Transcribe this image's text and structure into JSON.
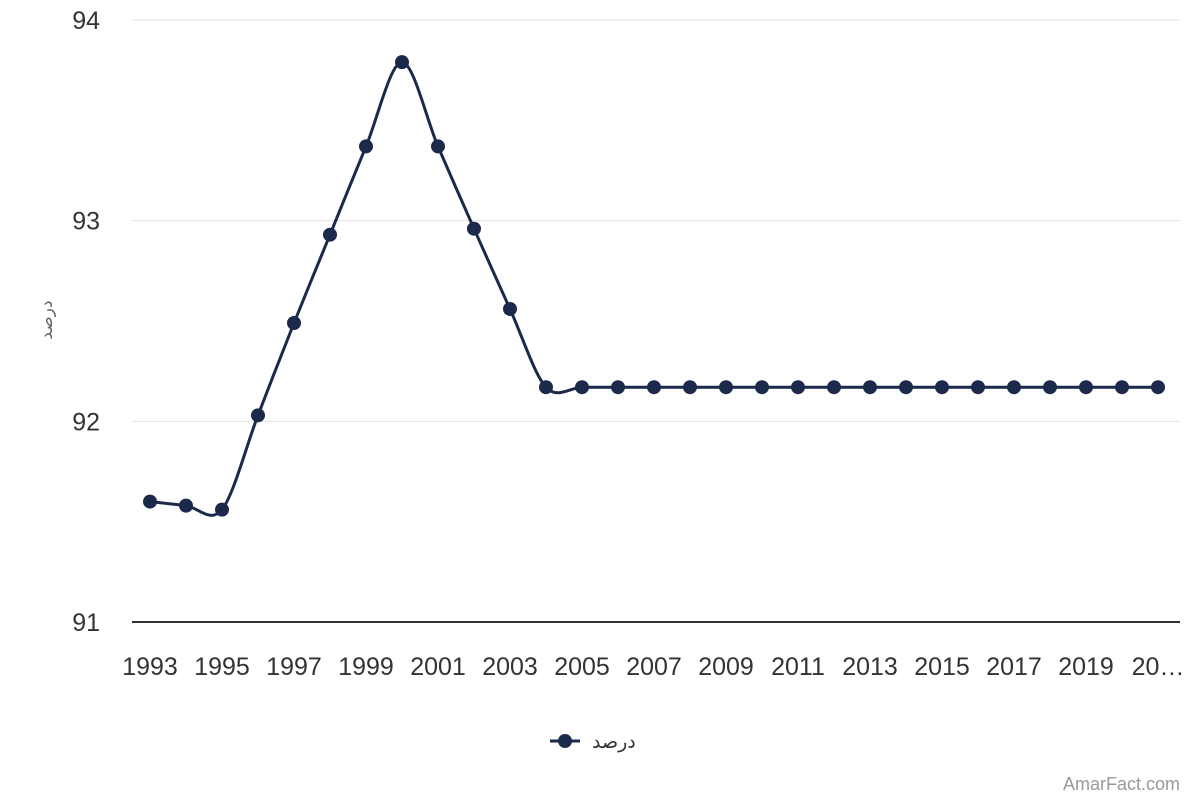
{
  "chart_data": {
    "type": "line",
    "x": [
      1993,
      1994,
      1995,
      1996,
      1997,
      1998,
      1999,
      2000,
      2001,
      2002,
      2003,
      2004,
      2005,
      2006,
      2007,
      2008,
      2009,
      2010,
      2011,
      2012,
      2013,
      2014,
      2015,
      2016,
      2017,
      2018,
      2019,
      2020,
      2021
    ],
    "series": [
      {
        "name": "درصد",
        "values": [
          91.6,
          91.58,
          91.56,
          92.03,
          92.49,
          92.93,
          93.37,
          93.79,
          93.37,
          92.96,
          92.56,
          92.17,
          92.17,
          92.17,
          92.17,
          92.17,
          92.17,
          92.17,
          92.17,
          92.17,
          92.17,
          92.17,
          92.17,
          92.17,
          92.17,
          92.17,
          92.17,
          92.17,
          92.17
        ],
        "color": "#1b2a4a"
      }
    ],
    "xtick_labels": [
      "1993",
      "1995",
      "1997",
      "1999",
      "2001",
      "2003",
      "2005",
      "2007",
      "2009",
      "2011",
      "2013",
      "2015",
      "2017",
      "2019",
      "20…"
    ],
    "yticks": [
      "91",
      "92",
      "93",
      "94"
    ],
    "ylim": [
      91,
      94
    ],
    "ylabel": "درصد",
    "legend_position": "bottom-center",
    "grid": true
  },
  "credit": "AmarFact.com"
}
